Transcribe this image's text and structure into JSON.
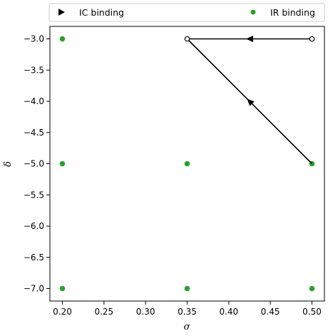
{
  "chart_data": {
    "type": "scatter",
    "xlabel": "σ",
    "ylabel": "δ",
    "xlim": [
      0.185,
      0.515
    ],
    "ylim": [
      -7.2,
      -2.8
    ],
    "x_ticks": [
      0.2,
      0.25,
      0.3,
      0.35,
      0.4,
      0.45,
      0.5
    ],
    "y_ticks": [
      -3.0,
      -3.5,
      -4.0,
      -4.5,
      -5.0,
      -5.5,
      -6.0,
      -6.5,
      -7.0
    ],
    "x_tick_labels": [
      "0.20",
      "0.25",
      "0.30",
      "0.35",
      "0.40",
      "0.45",
      "0.50"
    ],
    "y_tick_labels": [
      "−3.0",
      "−3.5",
      "−4.0",
      "−4.5",
      "−5.0",
      "−5.5",
      "−6.0",
      "−6.5",
      "−7.0"
    ],
    "grid": false,
    "legend_position": "top, above plot",
    "series": [
      {
        "name": "IC binding",
        "style": "path-with-arrows",
        "color": "#000000",
        "points": [
          {
            "x": 0.5,
            "y": -3.0
          },
          {
            "x": 0.35,
            "y": -3.0
          },
          {
            "x": 0.5,
            "y": -5.0
          }
        ],
        "open_markers": [
          {
            "x": 0.5,
            "y": -3.0
          },
          {
            "x": 0.35,
            "y": -3.0
          }
        ]
      },
      {
        "name": "IR binding",
        "style": "scatter",
        "color": "#2ca02c",
        "points": [
          {
            "x": 0.2,
            "y": -3.0
          },
          {
            "x": 0.2,
            "y": -5.0
          },
          {
            "x": 0.2,
            "y": -7.0
          },
          {
            "x": 0.35,
            "y": -5.0
          },
          {
            "x": 0.35,
            "y": -7.0
          },
          {
            "x": 0.5,
            "y": -5.0
          },
          {
            "x": 0.5,
            "y": -7.0
          }
        ]
      }
    ]
  }
}
